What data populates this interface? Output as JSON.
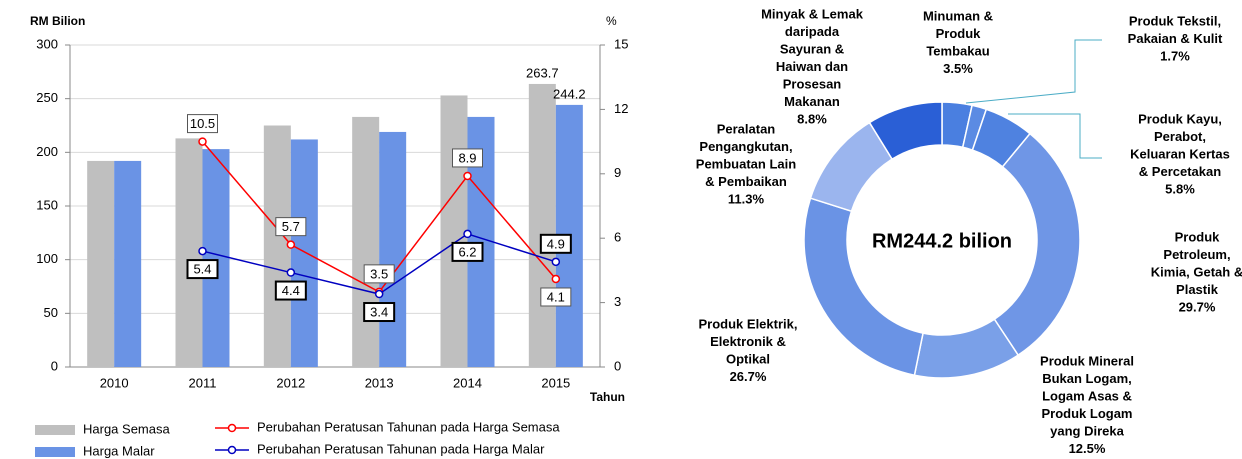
{
  "chart_data": [
    {
      "type": "bar",
      "y_label": "RM Bilion",
      "y2_label": "%",
      "x_label": "Tahun",
      "categories": [
        "2010",
        "2011",
        "2012",
        "2013",
        "2014",
        "2015"
      ],
      "series": [
        {
          "name": "Harga Semasa",
          "type": "bar",
          "color": "#bfbfbf",
          "values": [
            192,
            213,
            225,
            233,
            253,
            263.7
          ],
          "value_labels": [
            null,
            null,
            null,
            null,
            null,
            "263.7"
          ]
        },
        {
          "name": "Harga Malar",
          "type": "bar",
          "color": "#6a93e5",
          "values": [
            192,
            203,
            212,
            219,
            233,
            244.2
          ],
          "value_labels": [
            null,
            null,
            null,
            null,
            null,
            "244.2"
          ]
        },
        {
          "name": "Perubahan Peratusan Tahunan pada Harga Semasa",
          "type": "line",
          "axis": "y2",
          "color": "#ff0000",
          "values": [
            null,
            10.5,
            5.7,
            3.5,
            8.9,
            4.1
          ]
        },
        {
          "name": "Perubahan Peratusan Tahunan pada Harga Malar",
          "type": "line",
          "axis": "y2",
          "color": "#0000c0",
          "values": [
            null,
            5.4,
            4.4,
            3.4,
            6.2,
            4.9
          ]
        }
      ],
      "ylim": [
        0,
        300
      ],
      "yticks": [
        0,
        50,
        100,
        150,
        200,
        250,
        300
      ],
      "y2lim": [
        0,
        15
      ],
      "y2ticks": [
        0,
        3,
        6,
        9,
        12,
        15
      ],
      "grid": true
    },
    {
      "type": "donut",
      "center_label": "RM244.2 bilion",
      "labels": [
        [
          "Minuman &",
          "Produk",
          "Tembakau"
        ],
        [
          "Produk Tekstil,",
          "Pakaian & Kulit"
        ],
        [
          "Produk Kayu,",
          "Perabot,",
          "Keluaran Kertas",
          "& Percetakan"
        ],
        [
          "Produk",
          "Petroleum,",
          "Kimia, Getah &",
          "Plastik"
        ],
        [
          "Produk Mineral",
          "Bukan Logam,",
          "Logam Asas &",
          "Produk Logam",
          "yang Direka"
        ],
        [
          "Produk Elektrik,",
          "Elektronik &",
          "Optikal"
        ],
        [
          "Peralatan",
          "Pengangkutan,",
          "Pembuatan Lain",
          "& Pembaikan"
        ],
        [
          "Minyak & Lemak",
          "daripada",
          "Sayuran &",
          "Haiwan dan",
          "Prosesan",
          "Makanan"
        ]
      ],
      "values": [
        3.5,
        1.7,
        5.8,
        29.7,
        12.5,
        26.7,
        11.3,
        8.8
      ],
      "value_labels": [
        "3.5%",
        "1.7%",
        "5.8%",
        "29.7%",
        "12.5%",
        "26.7%",
        "11.3%",
        "8.8%"
      ],
      "colors": [
        "#4a7fe0",
        "#5b8be3",
        "#4f82e0",
        "#6f96e6",
        "#7aa0e8",
        "#6a93e5",
        "#9bb5ee",
        "#2a5fd6"
      ]
    }
  ]
}
